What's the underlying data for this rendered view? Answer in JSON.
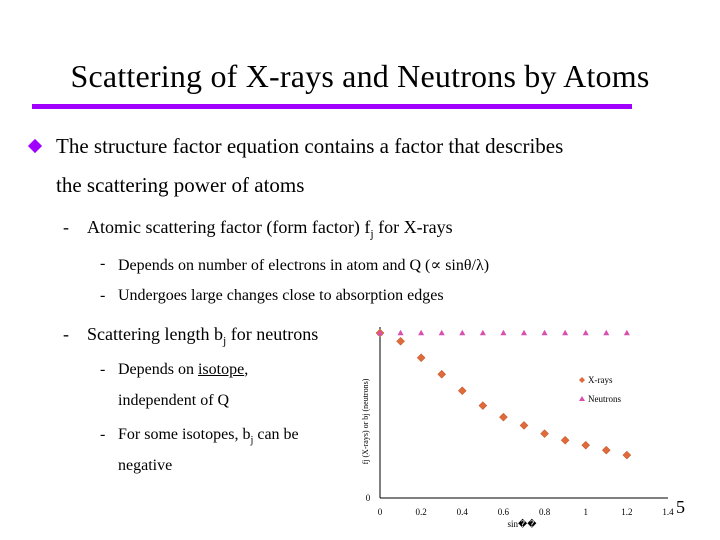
{
  "slide": {
    "title": "Scattering of X-rays and Neutrons by Atoms",
    "page_number": "5",
    "colors": {
      "accent": "#a100ff",
      "xrays": "#e06a3a",
      "neutrons": "#d84fb0"
    }
  },
  "bullets": {
    "main_line1": "The structure factor equation contains a factor that describes",
    "main_line2": "the scattering power of atoms",
    "xray_dash": "-",
    "xray_text_a": "Atomic scattering factor (form factor) f",
    "xray_sub": "j",
    "xray_text_b": " for X-rays",
    "xray_sub1_dash": "-",
    "xray_sub1": "Depends on number of electrons in atom and Q (∝ sinθ/λ)",
    "xray_sub2_dash": "-",
    "xray_sub2": "Undergoes large changes close to absorption edges",
    "neutron_dash": "-",
    "neutron_text_a": "Scattering length b",
    "neutron_sub": "j",
    "neutron_text_b": " for neutrons",
    "neutron_sub1_dash": "-",
    "neutron_sub1_a": "Depends on ",
    "neutron_sub1_u": "isotope",
    "neutron_sub1_b": ",",
    "neutron_sub1_line2": "independent of Q",
    "neutron_sub2_dash": "-",
    "neutron_sub2_a": "For some isotopes, b",
    "neutron_sub2_sub": "j",
    "neutron_sub2_b": " can be",
    "neutron_sub2_line2": "negative"
  },
  "chart_data": {
    "type": "scatter",
    "xlabel": "sin��",
    "ylabel": "fj (X-rays) or bj (neutrons)",
    "xlim": [
      0,
      1.4
    ],
    "ylim": [
      0,
      1.0
    ],
    "x_ticks": [
      "0",
      "0.2",
      "0.4",
      "0.6",
      "0.8",
      "1",
      "1.2",
      "1.4"
    ],
    "y_ticks": [
      "0"
    ],
    "legend_position": "right",
    "series": [
      {
        "name": "X-rays",
        "x": [
          0,
          0.1,
          0.2,
          0.3,
          0.4,
          0.5,
          0.6,
          0.7,
          0.8,
          0.9,
          1.0,
          1.1,
          1.2
        ],
        "y": [
          1.0,
          0.95,
          0.85,
          0.75,
          0.65,
          0.56,
          0.49,
          0.44,
          0.39,
          0.35,
          0.32,
          0.29,
          0.26
        ]
      },
      {
        "name": "Neutrons",
        "x": [
          0,
          0.1,
          0.2,
          0.3,
          0.4,
          0.5,
          0.6,
          0.7,
          0.8,
          0.9,
          1.0,
          1.1,
          1.2
        ],
        "y": [
          1.0,
          1.0,
          1.0,
          1.0,
          1.0,
          1.0,
          1.0,
          1.0,
          1.0,
          1.0,
          1.0,
          1.0,
          1.0
        ]
      }
    ]
  }
}
